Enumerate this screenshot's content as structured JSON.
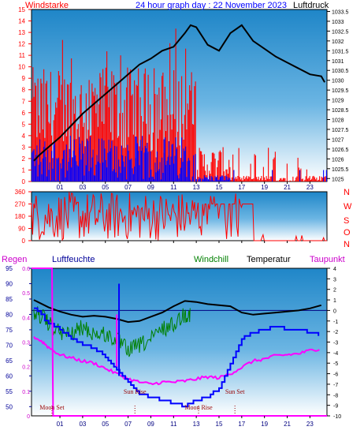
{
  "chart_data": [
    {
      "type": "line",
      "panel": "wind-pressure",
      "title": "24 hour graph day : 22 November 2023",
      "left_label": "Windstarke",
      "right_label": "Luftdruck",
      "x_ticks": [
        "01",
        "03",
        "05",
        "07",
        "09",
        "11",
        "13",
        "15",
        "17",
        "19",
        "21",
        "23"
      ],
      "xlim": [
        -1.5,
        24.5
      ],
      "left_axis": {
        "ylim": [
          0,
          15
        ],
        "ticks": [
          "0",
          "1",
          "2",
          "3",
          "4",
          "5",
          "6",
          "7",
          "8",
          "9",
          "10",
          "11",
          "12",
          "13",
          "14",
          "15"
        ]
      },
      "right_axis": {
        "ylim": [
          1024.85,
          1033.6
        ],
        "ticks": [
          "1025",
          "1025.5",
          "1026",
          "1026.5",
          "1027",
          "1027.5",
          "1028",
          "1028.5",
          "1029",
          "1029.5",
          "1030",
          "1030.5",
          "1031",
          "1031.5",
          "1032",
          "1032.5",
          "1033",
          "1033.5"
        ]
      },
      "series": [
        {
          "name": "Luftdruck",
          "color": "#000000",
          "x": [
            -1.3,
            -0.8,
            0,
            1,
            2,
            3,
            4,
            5,
            6,
            7,
            8,
            9,
            10,
            11,
            12,
            12.5,
            13,
            14,
            15,
            16,
            17,
            18,
            19,
            20,
            21,
            22,
            23,
            24,
            24.3
          ],
          "y": [
            1025.9,
            1026.2,
            1026.6,
            1027.1,
            1027.7,
            1028.3,
            1028.8,
            1029.3,
            1029.8,
            1030.3,
            1030.8,
            1031.1,
            1031.5,
            1031.7,
            1032.4,
            1032.8,
            1032.7,
            1031.8,
            1031.5,
            1032.4,
            1032.8,
            1032.0,
            1031.6,
            1031.2,
            1030.9,
            1030.6,
            1030.3,
            1030.2,
            1029.9
          ]
        },
        {
          "name": "Windstarke",
          "color": "#ff0000",
          "ylim": [
            0,
            15
          ]
        },
        {
          "name": "Windgust-avg",
          "color": "#0000ff",
          "ylim": [
            0,
            15
          ]
        }
      ]
    },
    {
      "type": "line",
      "panel": "wind-direction",
      "left_ticks": [
        "360",
        "270",
        "180",
        "90",
        "0"
      ],
      "right_letters": [
        "N",
        "W",
        "S",
        "O",
        "N"
      ],
      "ylim": [
        0,
        360
      ],
      "color": "#ff0000"
    },
    {
      "type": "line",
      "panel": "humidity-temperature",
      "legend": [
        "Regen",
        "Luftfeuchte",
        "Windchill",
        "Temperatur",
        "Taupunkt"
      ],
      "legend_colors": [
        "#cc00cc",
        "#000099",
        "#008000",
        "#000000",
        "#cc00cc"
      ],
      "left_axis_rain": {
        "ticks": [
          "0",
          "0.1",
          "0.2",
          "0.3",
          "0.4",
          "0.5",
          "0.6"
        ],
        "ylim": [
          0,
          0.6
        ]
      },
      "left_axis_humidity": {
        "ticks": [
          "50",
          "55",
          "60",
          "65",
          "70",
          "75",
          "80",
          "85",
          "90",
          "95"
        ],
        "ylim": [
          47,
          95
        ]
      },
      "right_axis_temp": {
        "ticks": [
          "4",
          "3",
          "2",
          "1",
          "0",
          "-1",
          "-2",
          "-3",
          "-4",
          "-5",
          "-6",
          "-7",
          "-8",
          "-9",
          "-10"
        ],
        "ylim": [
          -10,
          4
        ]
      },
      "annotations": [
        {
          "text": "Moon Set",
          "x": 0.3
        },
        {
          "text": "Sun Rise",
          "x": 7.6
        },
        {
          "text": "Moon Rise",
          "x": 13.2
        },
        {
          "text": "Sun Set",
          "x": 16.4
        }
      ],
      "series": [
        {
          "name": "Temperatur",
          "color": "#000000",
          "x": [
            -1.3,
            0,
            1,
            2,
            3,
            4,
            5,
            6,
            7,
            8,
            9,
            10,
            11,
            12,
            13,
            14,
            15,
            16,
            17,
            18,
            19,
            20,
            21,
            22,
            23,
            24
          ],
          "y": [
            1.0,
            0.3,
            -0.1,
            -0.4,
            -0.6,
            -0.5,
            -0.6,
            -0.8,
            -1.1,
            -1.0,
            -0.6,
            -0.2,
            0.4,
            0.9,
            0.8,
            0.6,
            0.5,
            0.4,
            -0.2,
            -0.4,
            -0.3,
            -0.2,
            -0.1,
            0.0,
            0.2,
            0.5
          ]
        },
        {
          "name": "Windchill",
          "color": "#008000",
          "x": [
            -1.3,
            -0.5,
            0,
            1,
            2,
            3,
            4,
            5,
            6,
            7,
            8,
            9,
            10,
            11,
            12,
            12.5
          ],
          "y": [
            0.6,
            0.2,
            -0.5,
            -1.3,
            -1.5,
            -0.8,
            -1.4,
            -1.5,
            -2.0,
            -3.0,
            -2.5,
            -2.0,
            -1.0,
            -0.5,
            0.5,
            0.4
          ]
        },
        {
          "name": "Taupunkt",
          "color": "#ff00ff",
          "x": [
            -1.3,
            -0.5,
            0,
            1,
            2,
            3,
            4,
            5,
            6,
            7,
            8,
            9,
            10,
            11,
            12,
            13,
            14,
            15,
            16,
            17,
            18,
            19,
            20,
            21,
            22,
            23,
            24
          ],
          "y": [
            -2.5,
            -3.0,
            -3.5,
            -4.2,
            -4.5,
            -4.8,
            -5.0,
            -5.5,
            -6.0,
            -6.5,
            -6.8,
            -7.0,
            -6.8,
            -6.8,
            -6.7,
            -6.5,
            -6.3,
            -6.4,
            -6.0,
            -5.4,
            -4.8,
            -4.6,
            -4.3,
            -4.2,
            -4.1,
            -3.8,
            -3.6
          ]
        },
        {
          "name": "Luftfeuchte",
          "color": "#0000ff",
          "x": [
            -1.3,
            0,
            1,
            2,
            3,
            4,
            5,
            6,
            7,
            8,
            9,
            10,
            11,
            12,
            13,
            14,
            15,
            16,
            17,
            18,
            19,
            20,
            21,
            22,
            23,
            24
          ],
          "y": [
            82,
            77,
            75,
            72,
            70,
            69,
            66,
            62,
            58,
            54,
            53,
            52,
            51,
            50,
            52,
            53,
            56,
            64,
            72,
            74,
            75,
            76,
            75,
            75,
            74,
            73
          ]
        },
        {
          "name": "Regen",
          "color": "#ff00ff",
          "x": [
            -1.5,
            -0.5,
            0.3,
            0.4,
            24.5
          ],
          "y": [
            0.6,
            0.6,
            0.6,
            0.0,
            0.0
          ]
        }
      ]
    }
  ]
}
